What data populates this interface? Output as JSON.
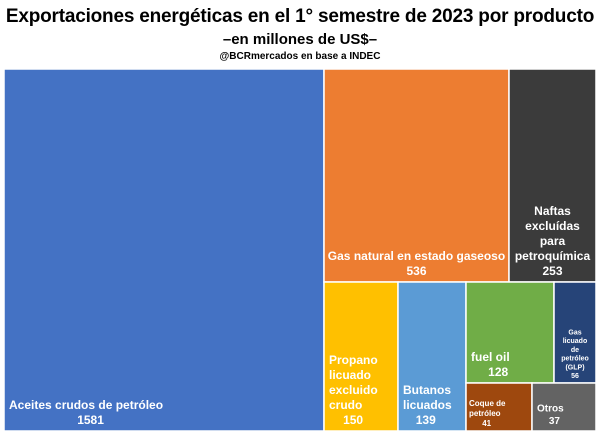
{
  "chart_data": {
    "type": "treemap",
    "title": "Exportaciones energéticas en el 1° semestre de 2023 por producto",
    "subtitle": "–en millones de US$–",
    "source": "@BCRmercados en base a INDEC",
    "unit": "millones de US$",
    "items": [
      {
        "name": "Aceites crudos de petróleo",
        "name_lines": [
          "Aceites crudos de petróleo"
        ],
        "value": 1581,
        "color": "#4472C4"
      },
      {
        "name": "Gas natural en estado gaseoso",
        "name_lines": [
          "Gas natural en estado gaseoso"
        ],
        "value": 536,
        "color": "#ED7D31"
      },
      {
        "name": "Naftas excluídas para petroquímica",
        "name_lines": [
          "Naftas",
          "excluídas",
          "para",
          "petroquímica"
        ],
        "value": 253,
        "color": "#3B3B3B"
      },
      {
        "name": "Propano licuado excluido crudo",
        "name_lines": [
          "Propano",
          "licuado",
          "excluido",
          "crudo"
        ],
        "value": 150,
        "color": "#FFC000"
      },
      {
        "name": "Butanos licuados",
        "name_lines": [
          "Butanos",
          "licuados"
        ],
        "value": 139,
        "color": "#5B9BD5"
      },
      {
        "name": "fuel oil",
        "name_lines": [
          "fuel oil"
        ],
        "value": 128,
        "color": "#70AD47"
      },
      {
        "name": "Gas licuado de petróleo (GLP)",
        "name_lines": [
          "Gas",
          "licuado",
          "de",
          "petróleo",
          "(GLP)"
        ],
        "value": 56,
        "color": "#264478"
      },
      {
        "name": "Coque de petróleo",
        "name_lines": [
          "Coque de",
          "petróleo"
        ],
        "value": 41,
        "color": "#9E480E"
      },
      {
        "name": "Otros",
        "name_lines": [
          "Otros"
        ],
        "value": 37,
        "color": "#636363"
      }
    ]
  }
}
